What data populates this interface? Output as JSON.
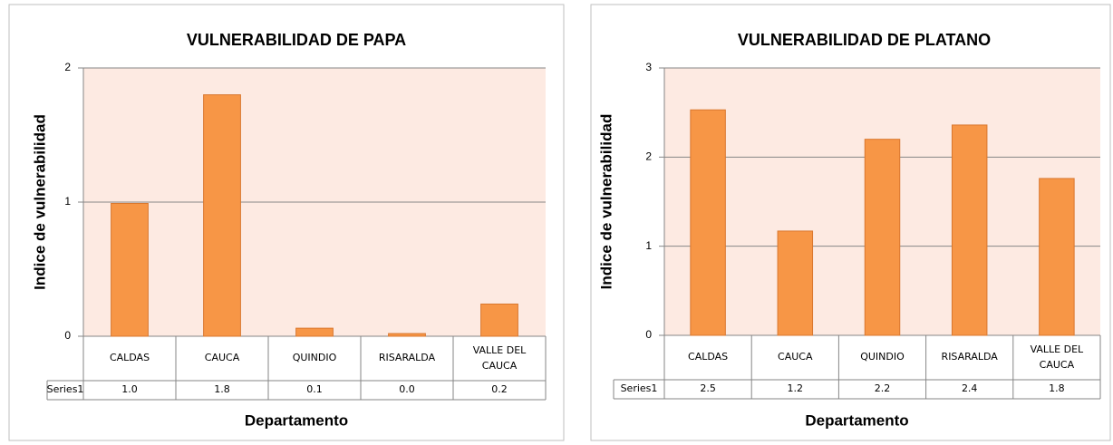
{
  "chart_data": [
    {
      "type": "bar",
      "title": "VULNERABILIDAD DE PAPA",
      "x_label": "Departamento",
      "y_label": "Indice de vulnerabilidad",
      "categories": [
        "CALDAS",
        "CAUCA",
        "QUINDIO",
        "RISARALDA",
        "VALLE DEL CAUCA"
      ],
      "series": [
        {
          "name": "Series1",
          "color": "#f79646",
          "values": [
            0.99,
            1.8,
            0.06,
            0.02,
            0.24
          ],
          "value_labels": [
            "1.0",
            "1.8",
            "0.1",
            "0.0",
            "0.2"
          ]
        }
      ],
      "ylim": [
        0,
        2
      ],
      "yticks": [
        0,
        1,
        2
      ],
      "grid": true
    },
    {
      "type": "bar",
      "title": "VULNERABILIDAD DE PLATANO",
      "x_label": "Departamento",
      "y_label": "Indice de vulnerabilidad",
      "categories": [
        "CALDAS",
        "CAUCA",
        "QUINDIO",
        "RISARALDA",
        "VALLE DEL CAUCA"
      ],
      "series": [
        {
          "name": "Series1",
          "color": "#f79646",
          "values": [
            2.53,
            1.17,
            2.2,
            2.36,
            1.76
          ],
          "value_labels": [
            "2.5",
            "1.2",
            "2.2",
            "2.4",
            "1.8"
          ]
        }
      ],
      "ylim": [
        0,
        3
      ],
      "yticks": [
        0,
        1,
        2,
        3
      ],
      "grid": true
    }
  ]
}
